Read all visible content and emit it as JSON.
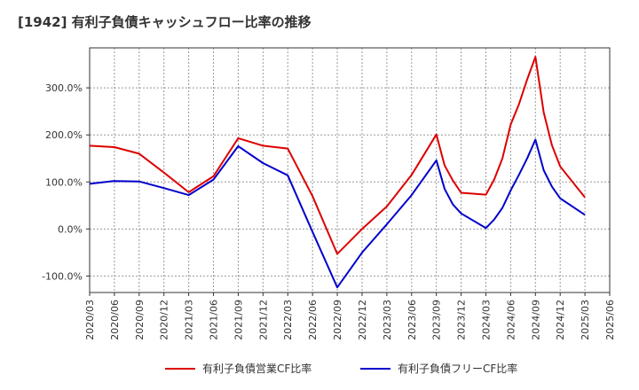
{
  "chart_data": {
    "type": "line",
    "title": "[1942]  有利子負債キャッシュフロー比率の推移",
    "xlabel": "",
    "ylabel": "",
    "ylim": [
      -135,
      385
    ],
    "grid": true,
    "legend_position": "bottom",
    "y_ticks": [
      -100,
      0,
      100,
      200,
      300
    ],
    "y_tick_labels": [
      "-100.0%",
      "0.0%",
      "100.0%",
      "200.0%",
      "300.0%"
    ],
    "x_tick_labels": [
      "2020/03",
      "2020/06",
      "2020/09",
      "2020/12",
      "2021/03",
      "2021/06",
      "2021/09",
      "2021/12",
      "2022/03",
      "2022/06",
      "2022/09",
      "2022/12",
      "2023/03",
      "2023/06",
      "2023/09",
      "2023/12",
      "2024/03",
      "2024/06",
      "2024/09",
      "2024/12",
      "2025/03",
      "2025/06"
    ],
    "x": [
      "2020/03",
      "2020/06",
      "2020/09",
      "2020/12",
      "2021/03",
      "2021/06",
      "2021/09",
      "2021/12",
      "2022/03",
      "2022/06",
      "2022/09",
      "2022/12",
      "2023/03",
      "2023/06",
      "2023/09",
      "2023/10",
      "2023/11",
      "2023/12",
      "2024/03",
      "2024/04",
      "2024/05",
      "2024/06",
      "2024/07",
      "2024/08",
      "2024/09",
      "2024/10",
      "2024/11",
      "2024/12",
      "2025/03"
    ],
    "series": [
      {
        "name": "有利子負債営業CF比率",
        "color": "#dd0000",
        "values": [
          177,
          174,
          160,
          120,
          78,
          112,
          193,
          177,
          171,
          70,
          -53,
          0,
          48,
          115,
          201,
          135,
          103,
          77,
          73,
          105,
          150,
          222,
          265,
          318,
          366,
          248,
          178,
          133,
          67
        ]
      },
      {
        "name": "有利子負債フリーCF比率",
        "color": "#0000cc",
        "values": [
          96,
          102,
          101,
          87,
          72,
          105,
          176,
          140,
          114,
          -6,
          -124,
          -50,
          10,
          72,
          146,
          85,
          52,
          33,
          2,
          20,
          45,
          82,
          115,
          150,
          190,
          125,
          90,
          65,
          30
        ]
      }
    ]
  }
}
